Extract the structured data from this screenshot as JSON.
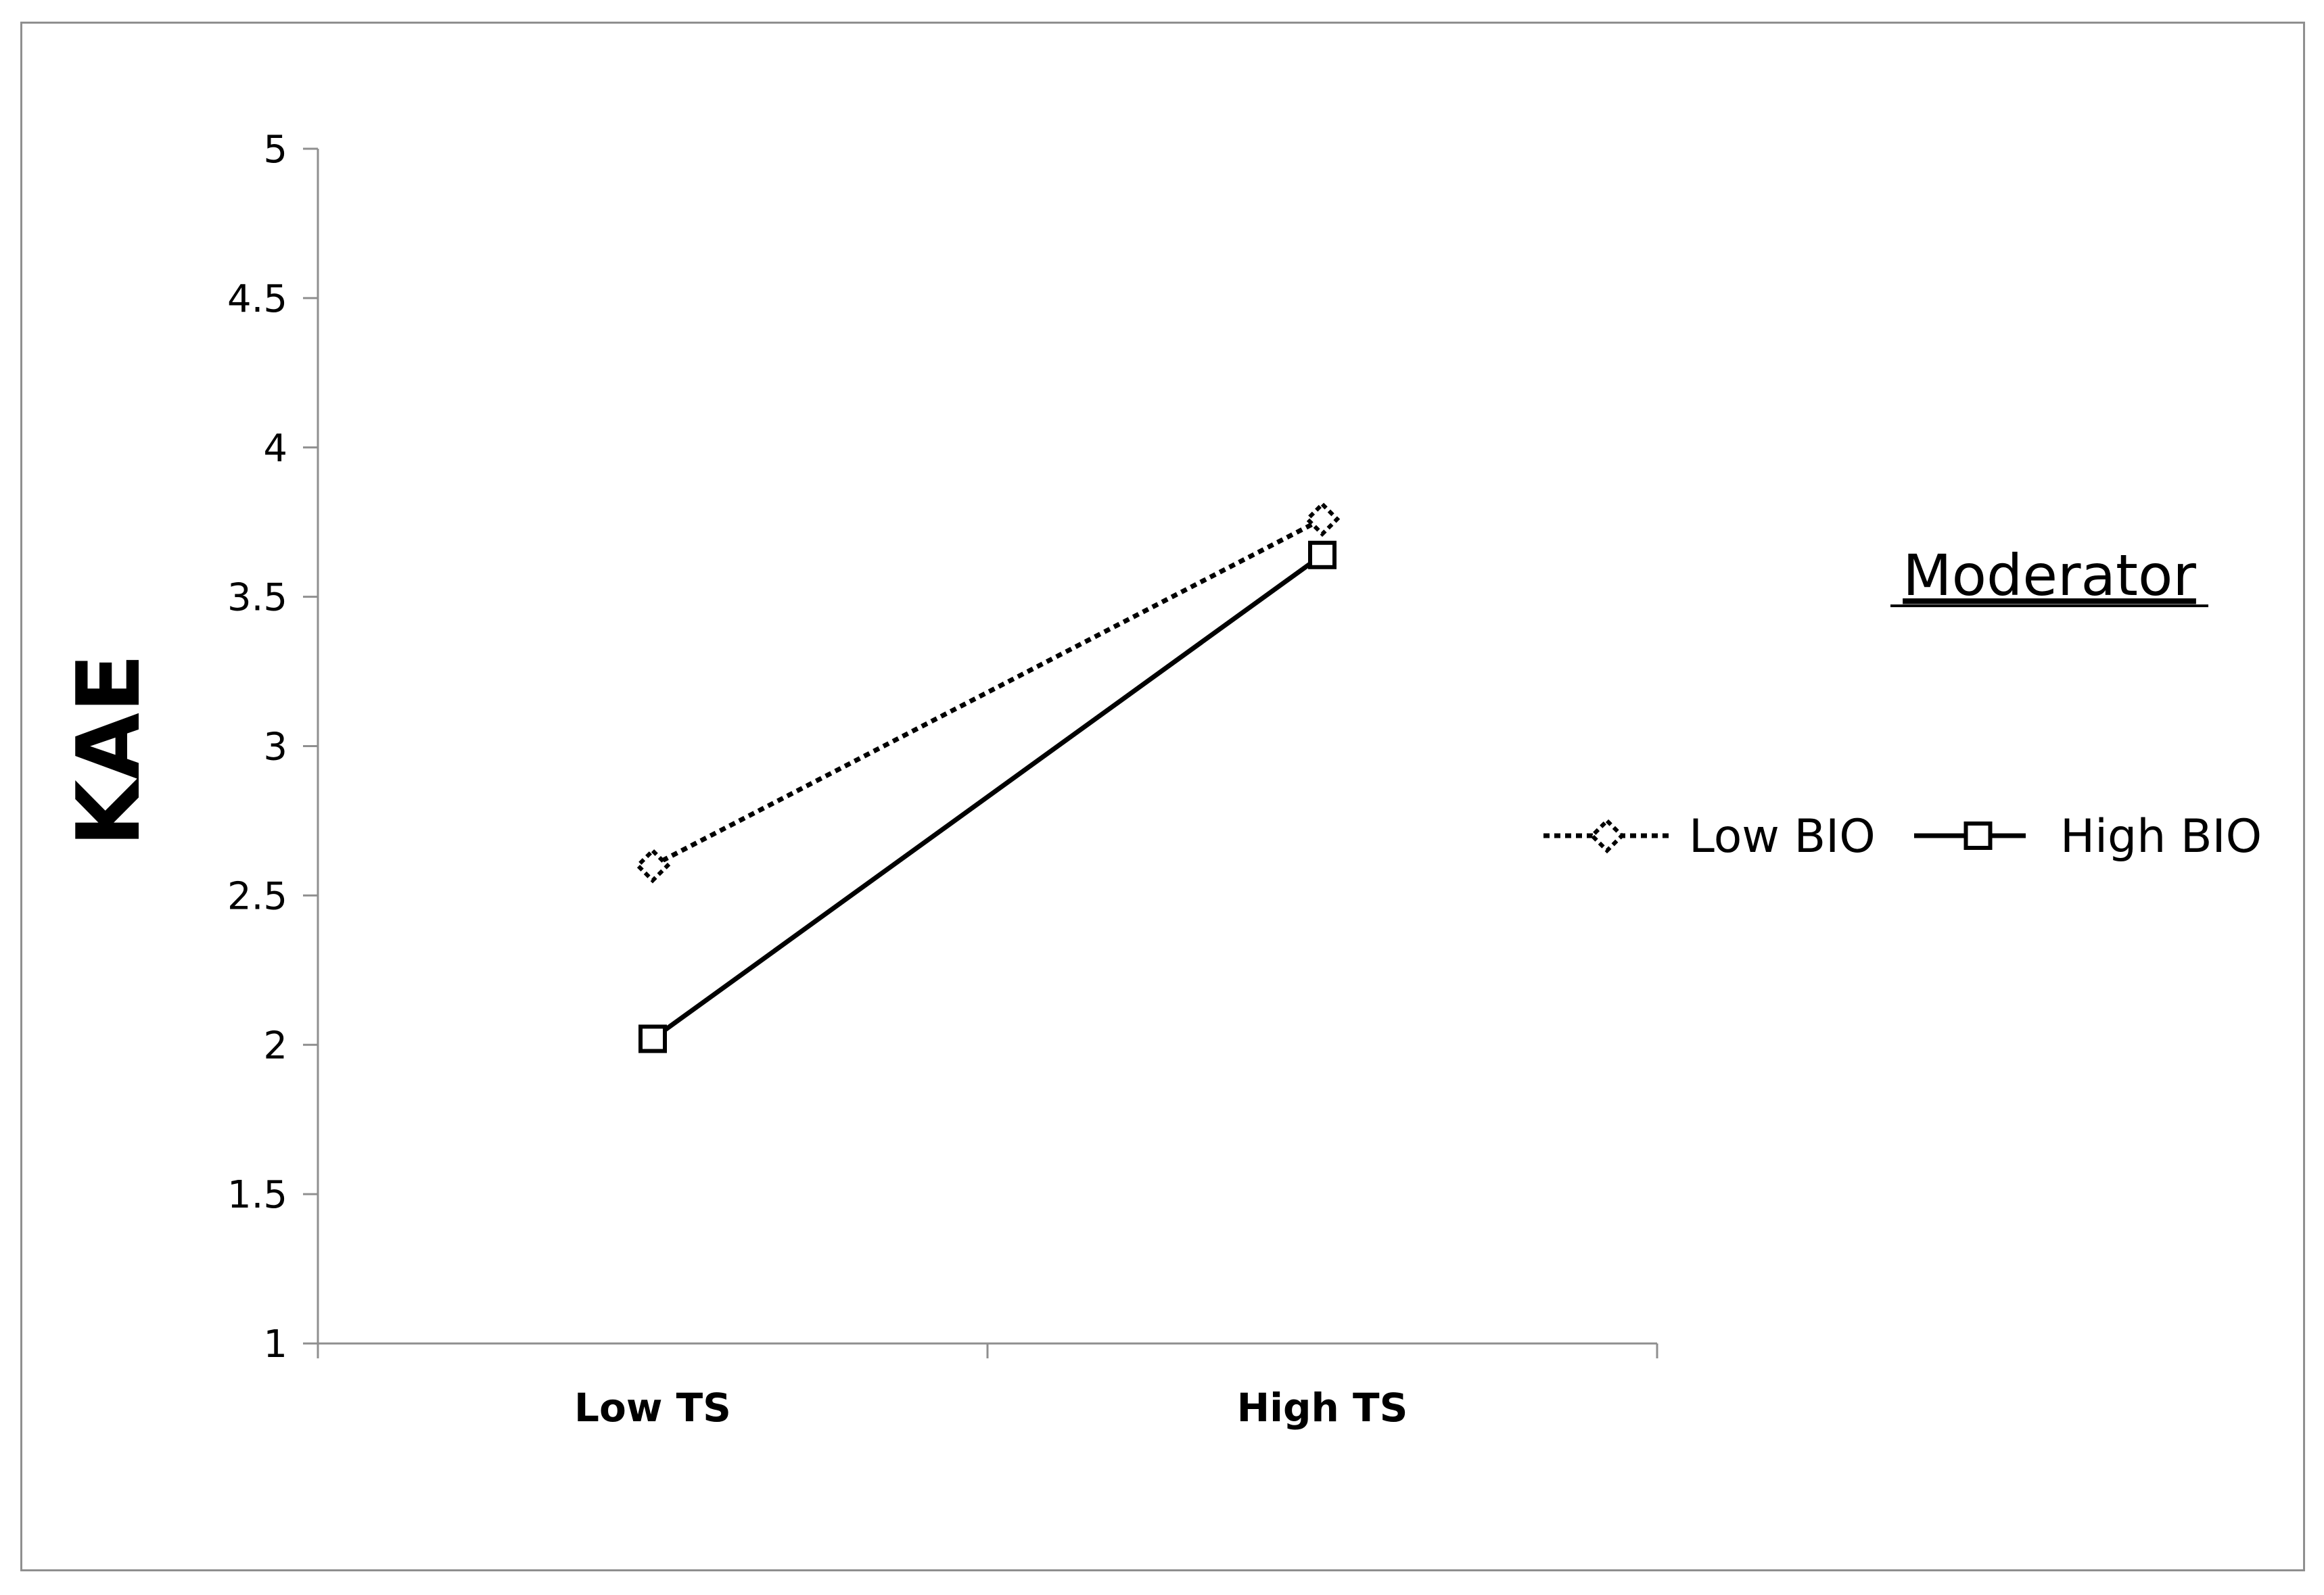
{
  "chart_data": {
    "type": "line",
    "categories": [
      "Low TS",
      "High TS"
    ],
    "series": [
      {
        "name": "Low BIO",
        "values": [
          2.6,
          3.76
        ],
        "style": "dotted",
        "marker": "diamond",
        "color": "#000000"
      },
      {
        "name": "High BIO",
        "values": [
          2.02,
          3.64
        ],
        "style": "solid",
        "marker": "square",
        "color": "#000000"
      }
    ],
    "ylabel": "KAE",
    "xlabel": "",
    "ylim": [
      1,
      5
    ],
    "yticks": [
      1,
      1.5,
      2,
      2.5,
      3,
      3.5,
      4,
      4.5,
      5
    ],
    "ytick_labels": [
      "1",
      "1.5",
      "2",
      "2.5",
      "3",
      "3.5",
      "4",
      "4.5",
      "5"
    ],
    "grid": false,
    "legend": {
      "title": "Moderator",
      "placement": "right",
      "entries": [
        "Low BIO",
        "High BIO"
      ]
    }
  }
}
